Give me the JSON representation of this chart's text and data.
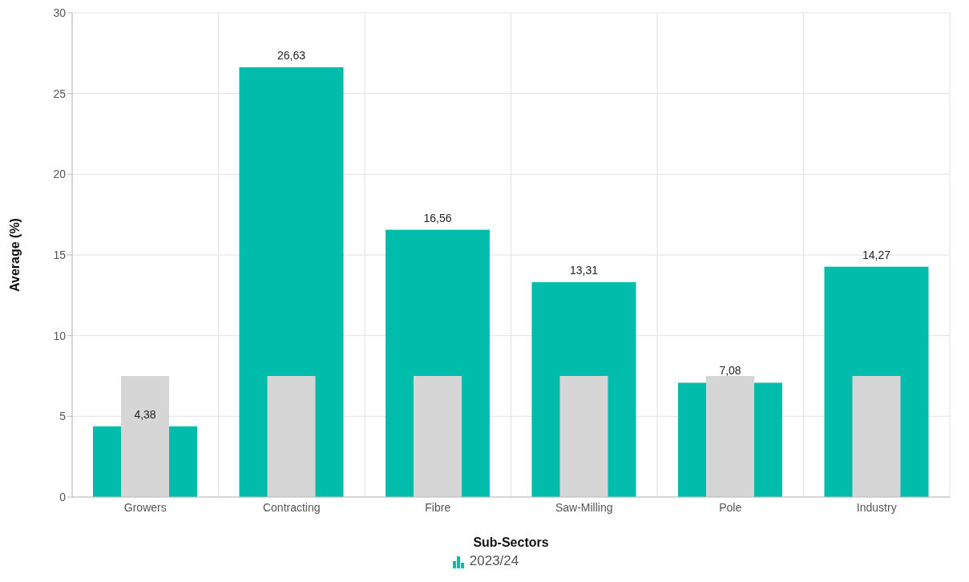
{
  "chart_data": {
    "type": "bar",
    "xlabel": "Sub-Sectors",
    "ylabel": "Average (%)",
    "categories": [
      "Growers",
      "Contracting",
      "Fibre",
      "Saw-Milling",
      "Pole",
      "Industry"
    ],
    "series": [
      {
        "name": "2023/24",
        "color": "#00bcaa",
        "values": [
          4.38,
          26.63,
          16.56,
          13.31,
          7.08,
          14.27
        ],
        "value_labels": [
          "4,38",
          "26,63",
          "16,56",
          "13,31",
          "7,08",
          "14,27"
        ]
      },
      {
        "color": "#d6d6d6",
        "values": [
          7.5,
          7.5,
          7.5,
          7.5,
          7.5,
          7.5
        ]
      }
    ],
    "ylim": [
      0,
      30
    ],
    "yticks": [
      0,
      5,
      10,
      15,
      20,
      25,
      30
    ],
    "grid": true,
    "legend": "bottom"
  }
}
